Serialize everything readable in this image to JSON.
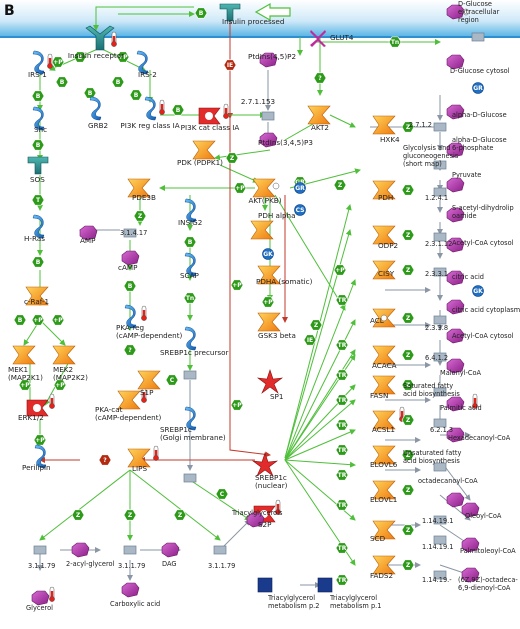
{
  "panel_letter": "B",
  "colors": {
    "membrane": "#8ec9ea",
    "green_hex": "#2d9a19",
    "red_hex": "#b32a10",
    "orange_node": "#f7a11c",
    "purple_node": "#b33ab0",
    "blue_protein": "#2b86d6",
    "green_edge": "#4fbf3a",
    "red_edge": "#c0392b"
  },
  "nodes": {
    "insulin_processed": "Insulin processed",
    "insulin_receptor": "Insulin receptor",
    "d_glucose_extracellular": "D-Glucose extracellular region",
    "glut4": "GLUT4",
    "d_glucose_cytosol": "D-Glucose cytosol",
    "irs1": "IRS-1",
    "irs2": "IRS-2",
    "shc": "Shc",
    "grb2": "GRB2",
    "pi3k_reg": "PI3K reg class IA",
    "pi3k_cat": "PI3K cat class IA",
    "ptdins45p2": "PtdIns(4,5)P2",
    "ptdins345p3": "PtdIns(3,4,5)P3",
    "ec_27153": "2.7.1.153",
    "akt2": "AKT2",
    "hxk4": "HXK4",
    "alpha_d_glucose": "alpha-D-Glucose",
    "alpha_d_glucose_6p": "alpha-D-Glucose 6-phosphate",
    "ec_2712": "2.7.1.2",
    "glycolysis": "Glycolysis and gluconeogenesis (short map)",
    "pyruvate": "Pyruvate",
    "pdk": "PDK (PDPK1)",
    "sos": "SOS",
    "pde3b": "PDE3B",
    "akt_pkb": "AKT(PKB)",
    "pdh": "PDH",
    "ec_1241": "1.2.4.1",
    "s_acetyl": "S-acetyl-dihydrolip oamide",
    "odp2": "ODP2",
    "ec_23112": "2.3.1.12",
    "acetyl_coa_cytosol": "Acetyl-CoA cytosol",
    "cisy": "CISY",
    "ec_2331": "2.3.3.1",
    "citric_acid": "citric acid",
    "citric_acid_cytoplasm": "citric acid cytoplasm",
    "acl": "ACL",
    "ec_2338": "2.3.3.8",
    "acetyl_coa_cytosol2": "Acetyl-CoA cytosol",
    "h_ras": "H-Ras",
    "amp": "AMP",
    "ec_31417": "3.1.4.17",
    "camp": "cAMP",
    "insig2": "INSIG2",
    "pdh_alpha": "PDH alpha",
    "pdha": "PDHA (somatic)",
    "scap": "SCAP",
    "c_raf1": "c-Raf-1",
    "pka_reg": "PKA-reg (cAMP-dependent)",
    "srebp1c_precursor": "SREBP1c precursor",
    "gsk3": "GSK3 beta",
    "acaca": "ACACA",
    "ec_6412": "6.4.1.2",
    "malonyl_coa": "Malonyl-CoA",
    "mek1": "MEK1 (MAP2K1)",
    "mek2": "MEK2 (MAP2K2)",
    "s1p": "S1P",
    "sp1": "SP1",
    "fasn": "FASN",
    "sat_fatty": "Saturated fatty acid biosynthesis",
    "palmitic_acid": "Palmitic acid",
    "erk12": "ERK1/2",
    "pka_cat": "PKA-cat (cAMP-dependent)",
    "srebp1c_golgi": "SREBP1c (Golgi membrane)",
    "acsl1": "ACSL1",
    "ec_6213": "6.2.1.3",
    "hexadecanoyl": "Hexadecanoyl-CoA",
    "elovl6": "ELOVL6",
    "unsat_fatty": "Unsaturated fatty acid biosynthesis",
    "perilipin": "Perilipin",
    "lips": "LIPS",
    "srebp1c_nuclear": "SREBP1c (nuclear)",
    "elovl1": "ELOVL1",
    "octadecanoyl": "octadecanoyl-CoA",
    "s2p": "S2P",
    "scd": "SCD",
    "ec_114191a": "1.14.19.1",
    "oleoyl": "Oleoyl-CoA",
    "ec_3117_a": "3.1.1.79",
    "acylglycerol": "2-acyl-glycerol",
    "ec_3117_b": "3.1.1.79",
    "dag": "DAG",
    "ec_3117_c": "3.1.1.79",
    "triacylglycerols": "Triacylglycerols",
    "ec_114191b": "1.14.19.1",
    "palmitoleoyl": "Palmitoleoyl-CoA",
    "fads2": "FADS2",
    "ec_114191c": "1.14.19.-",
    "octadeca_dienoyl": "(6Z,9Z)-octadeca-6,9-dienoyl-CoA",
    "glycerol": "Glycerol",
    "carboxylic": "Carboxylic acid",
    "tag_met2": "Triacylglycerol metabolism p.2",
    "tag_met1": "Triacylglycerol metabolism p.1"
  },
  "hex_labels": {
    "b": "B",
    "p": "+P",
    "z": "Z",
    "t": "T",
    "tr": "TR",
    "ie": "IE",
    "c": "C",
    "cs": "CS",
    "gk": "GK",
    "gr": "GR",
    "q": "?",
    "tn": "Tn",
    "mp": "-P"
  }
}
